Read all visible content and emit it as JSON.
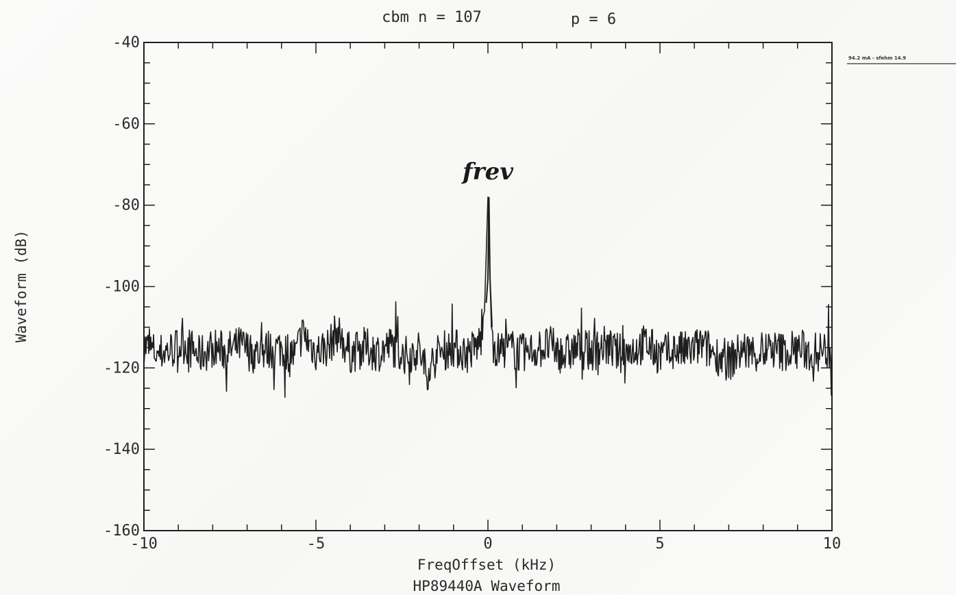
{
  "chart_data": {
    "type": "line",
    "title": "cbm n = 107",
    "title_param": "p = 6",
    "subtitle": "HP89440A Waveform",
    "xlabel": "FreqOffset (kHz)",
    "ylabel": "Waveform (dB)",
    "xlim": [
      -10,
      10
    ],
    "ylim": [
      -160,
      -40
    ],
    "x_ticks": [
      -10,
      -5,
      0,
      5,
      10
    ],
    "x_tick_labels": [
      "-10",
      "-5",
      "0",
      "5",
      "10"
    ],
    "y_ticks": [
      -40,
      -60,
      -80,
      -100,
      -120,
      -140,
      -160
    ],
    "y_tick_labels": [
      "-40",
      "-60",
      "-80",
      "-100",
      "-120",
      "-140",
      "-160"
    ],
    "grid": false,
    "line_color": "#1e1e1e",
    "noise_floor_db": -116,
    "series": [
      {
        "x": [
          -10.0,
          -9.6,
          -9.2,
          -8.8,
          -8.4,
          -8.0,
          -7.6,
          -7.2,
          -6.8,
          -6.4,
          -6.0,
          -5.6,
          -5.4,
          -5.0,
          -4.6,
          -4.4,
          -4.0,
          -3.6,
          -3.2,
          -2.8,
          -2.4,
          -2.0,
          -1.8,
          -1.4,
          -1.0,
          -0.6,
          -0.3,
          -0.1,
          0.0,
          0.1,
          0.3,
          0.6,
          1.0,
          1.4,
          1.8,
          2.2,
          2.6,
          3.0,
          3.4,
          3.8,
          4.2,
          4.6,
          5.0,
          5.4,
          5.8,
          6.2,
          6.6,
          7.0,
          7.4,
          7.8,
          8.2,
          8.6,
          9.0,
          9.4,
          9.8,
          10.0
        ],
        "values": [
          -113,
          -117,
          -115,
          -112,
          -118,
          -114,
          -116,
          -113,
          -117,
          -115,
          -114,
          -118,
          -107,
          -116,
          -113,
          -106,
          -117,
          -114,
          -116,
          -113,
          -118,
          -115,
          -126,
          -116,
          -114,
          -117,
          -113,
          -106,
          -78,
          -110,
          -116,
          -114,
          -117,
          -115,
          -113,
          -118,
          -114,
          -116,
          -113,
          -117,
          -115,
          -112,
          -118,
          -115,
          -116,
          -113,
          -117,
          -121,
          -115,
          -117,
          -115,
          -116,
          -114,
          -117,
          -115,
          -116
        ]
      }
    ],
    "annotations": [
      {
        "text": "frev",
        "x": 0.1,
        "y": -72
      }
    ],
    "margin_note": "94.2 mA - sfehm 14.9"
  }
}
